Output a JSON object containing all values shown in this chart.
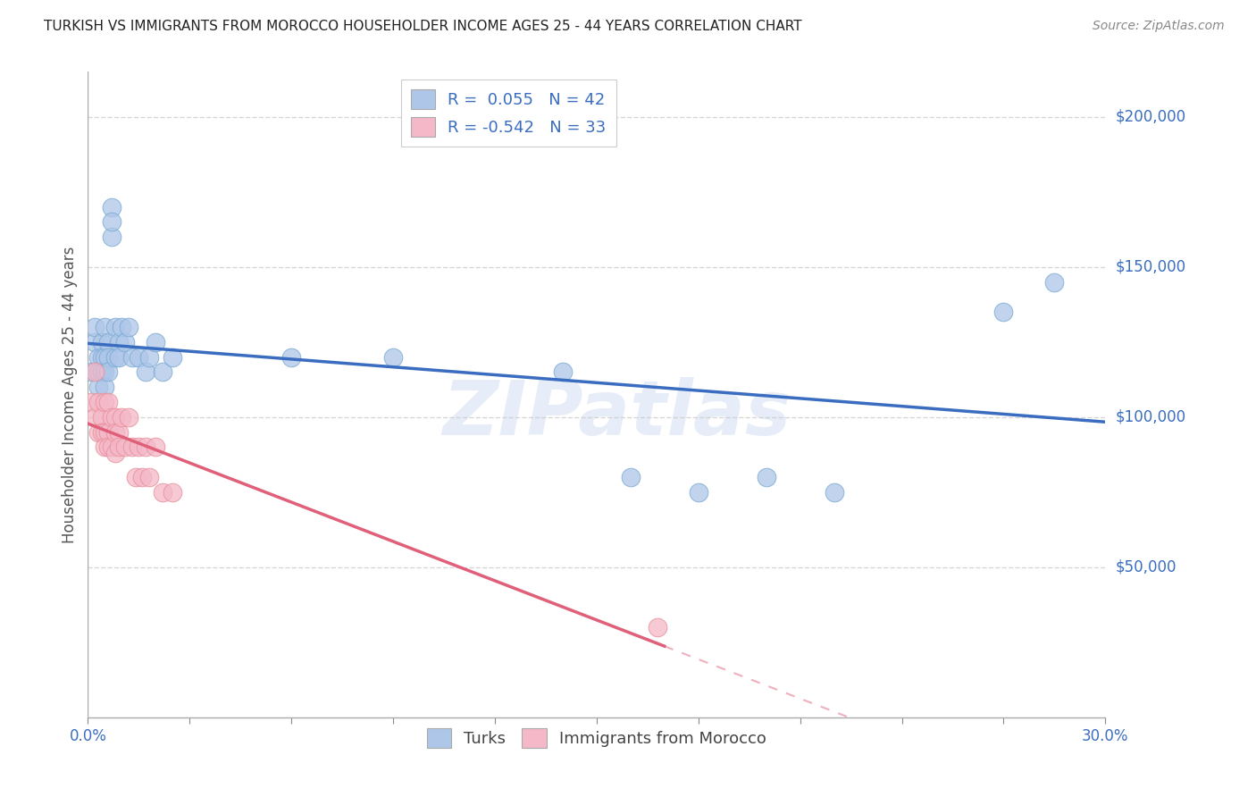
{
  "title": "TURKISH VS IMMIGRANTS FROM MOROCCO HOUSEHOLDER INCOME AGES 25 - 44 YEARS CORRELATION CHART",
  "source": "Source: ZipAtlas.com",
  "ylabel": "Householder Income Ages 25 - 44 years",
  "ytick_labels": [
    "$50,000",
    "$100,000",
    "$150,000",
    "$200,000"
  ],
  "ytick_values": [
    50000,
    100000,
    150000,
    200000
  ],
  "ylim": [
    0,
    215000
  ],
  "xlim": [
    0.0,
    0.3
  ],
  "watermark_text": "ZIPatlas",
  "turks_color": "#aec6e8",
  "turks_edge_color": "#7aaad4",
  "turks_line_color": "#3a6dbf",
  "morocco_color": "#f4b8c8",
  "morocco_edge_color": "#e8909a",
  "morocco_line_color": "#e0607a",
  "background_color": "#ffffff",
  "grid_color": "#cccccc",
  "legend1_label": "R =  0.055   N = 42",
  "legend2_label": "R = -0.542   N = 33",
  "turks_x": [
    0.001,
    0.002,
    0.002,
    0.003,
    0.003,
    0.003,
    0.004,
    0.004,
    0.004,
    0.005,
    0.005,
    0.005,
    0.005,
    0.006,
    0.006,
    0.006,
    0.007,
    0.007,
    0.007,
    0.008,
    0.008,
    0.009,
    0.009,
    0.01,
    0.011,
    0.012,
    0.013,
    0.015,
    0.017,
    0.018,
    0.02,
    0.022,
    0.025,
    0.06,
    0.09,
    0.14,
    0.16,
    0.18,
    0.2,
    0.22,
    0.27,
    0.285
  ],
  "turks_y": [
    115000,
    125000,
    130000,
    120000,
    115000,
    110000,
    125000,
    120000,
    115000,
    130000,
    120000,
    115000,
    110000,
    125000,
    120000,
    115000,
    160000,
    170000,
    165000,
    130000,
    120000,
    125000,
    120000,
    130000,
    125000,
    130000,
    120000,
    120000,
    115000,
    120000,
    125000,
    115000,
    120000,
    120000,
    120000,
    115000,
    80000,
    75000,
    80000,
    75000,
    135000,
    145000
  ],
  "morocco_x": [
    0.001,
    0.002,
    0.002,
    0.003,
    0.003,
    0.004,
    0.004,
    0.005,
    0.005,
    0.005,
    0.006,
    0.006,
    0.006,
    0.007,
    0.007,
    0.008,
    0.008,
    0.008,
    0.009,
    0.009,
    0.01,
    0.011,
    0.012,
    0.013,
    0.014,
    0.015,
    0.016,
    0.017,
    0.018,
    0.02,
    0.022,
    0.025,
    0.168
  ],
  "morocco_y": [
    105000,
    100000,
    115000,
    105000,
    95000,
    100000,
    95000,
    105000,
    95000,
    90000,
    105000,
    95000,
    90000,
    100000,
    90000,
    100000,
    95000,
    88000,
    95000,
    90000,
    100000,
    90000,
    100000,
    90000,
    80000,
    90000,
    80000,
    90000,
    80000,
    90000,
    75000,
    75000,
    30000
  ],
  "turks_R": 0.055,
  "morocco_R": -0.542,
  "morocco_solid_end": 0.17,
  "xtick_count": 11
}
